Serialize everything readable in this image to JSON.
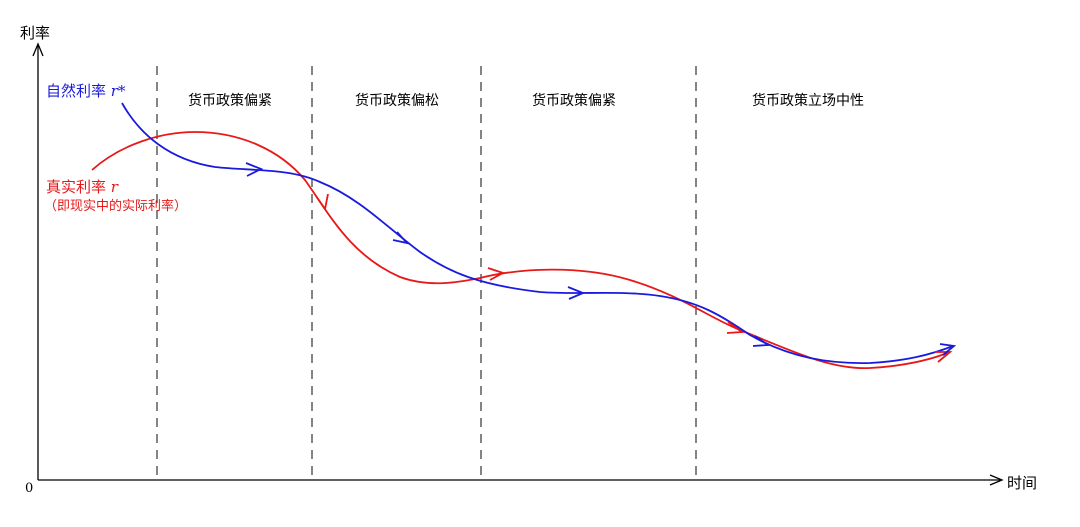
{
  "axes": {
    "y_label": "利率",
    "x_label": "时间",
    "origin": "0"
  },
  "phases": [
    "货币政策偏紧",
    "货币政策偏松",
    "货币政策偏紧",
    "货币政策立场中性"
  ],
  "natural_rate": {
    "label": "自然利率",
    "symbol": "r*",
    "color": "#1a1adf"
  },
  "real_rate": {
    "label": "真实利率",
    "symbol": "r",
    "note": "（即现实中的实际利率）",
    "color": "#e81818"
  }
}
